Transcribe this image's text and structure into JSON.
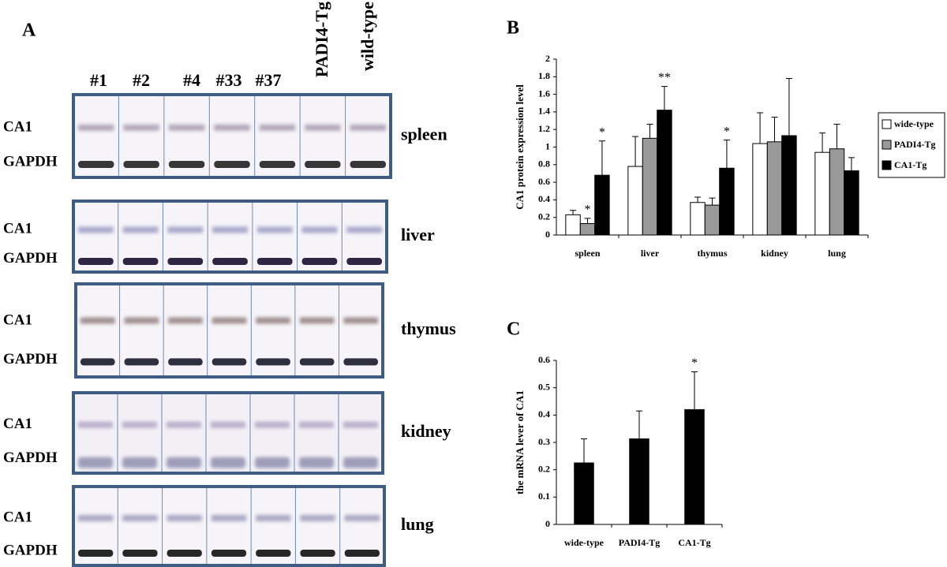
{
  "panel_a": {
    "letter": "A",
    "lanes": [
      "#1",
      "#2",
      "#4",
      "#33",
      "#37",
      "PADI4-Tg",
      "wild-type"
    ],
    "blots": [
      {
        "tissue": "spleen",
        "bands": [
          "CA1",
          "GAPDH"
        ]
      },
      {
        "tissue": "liver",
        "bands": [
          "CA1",
          "GAPDH"
        ]
      },
      {
        "tissue": "thymus",
        "bands": [
          "CA1",
          "GAPDH"
        ]
      },
      {
        "tissue": "kidney",
        "bands": [
          "CA1",
          "GAPDH"
        ]
      },
      {
        "tissue": "lung",
        "bands": [
          "CA1",
          "GAPDH"
        ]
      }
    ]
  },
  "chart_data": [
    {
      "type": "bar",
      "panel": "B",
      "ylabel": "CA1 protein expression level",
      "categories": [
        "spleen",
        "liver",
        "thymus",
        "kidney",
        "lung"
      ],
      "series": [
        {
          "name": "wide-type",
          "color": "#ffffff",
          "values": [
            0.23,
            0.78,
            0.37,
            1.04,
            0.94
          ],
          "errors": [
            0.05,
            0.34,
            0.06,
            0.35,
            0.22
          ],
          "significance": [
            null,
            null,
            null,
            null,
            null
          ]
        },
        {
          "name": "PADI4-Tg",
          "color": "#999999",
          "values": [
            0.13,
            1.1,
            0.34,
            1.06,
            0.98
          ],
          "errors": [
            0.06,
            0.16,
            0.08,
            0.28,
            0.28
          ],
          "significance": [
            "*",
            null,
            null,
            null,
            null
          ]
        },
        {
          "name": "CA1-Tg",
          "color": "#000000",
          "values": [
            0.68,
            1.42,
            0.76,
            1.13,
            0.73
          ],
          "errors": [
            0.39,
            0.27,
            0.32,
            0.65,
            0.15
          ],
          "significance": [
            "*",
            "**",
            "*",
            null,
            null
          ]
        }
      ],
      "ylim": [
        0,
        2
      ],
      "yticks": [
        0,
        0.2,
        0.4,
        0.6,
        0.8,
        1,
        1.2,
        1.4,
        1.6,
        1.8,
        2
      ],
      "legend": "right"
    },
    {
      "type": "bar",
      "panel": "C",
      "ylabel": "the mRNA lever of CA1",
      "categories": [
        "wide-type",
        "PADI4-Tg",
        "CA1-Tg"
      ],
      "series": [
        {
          "color": "#000000",
          "values": [
            0.225,
            0.313,
            0.42
          ],
          "errors": [
            0.088,
            0.102,
            0.138
          ],
          "significance": [
            null,
            null,
            "*"
          ]
        }
      ],
      "ylim": [
        0,
        0.6
      ],
      "yticks": [
        0,
        0.1,
        0.2,
        0.3,
        0.4,
        0.5,
        0.6
      ]
    }
  ]
}
